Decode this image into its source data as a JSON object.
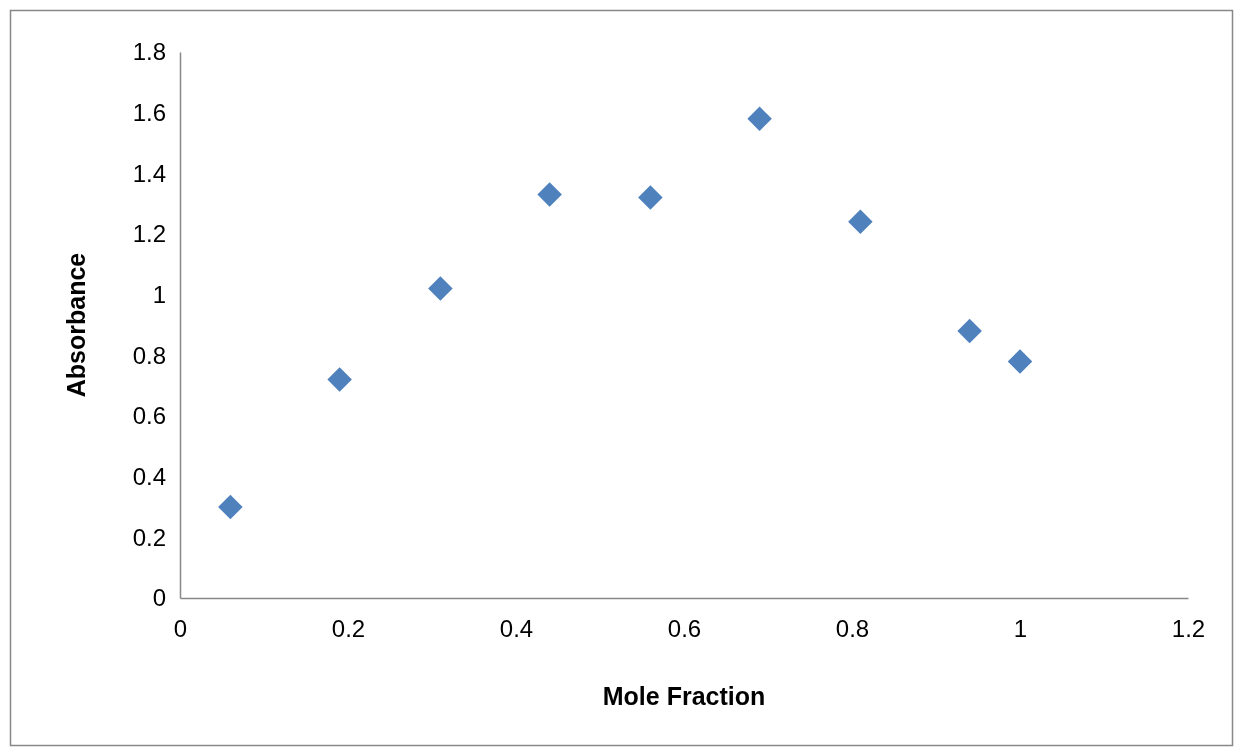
{
  "chart_data": {
    "type": "scatter",
    "xlabel": "Mole Fraction",
    "ylabel": "Absorbance",
    "x": [
      0.06,
      0.19,
      0.31,
      0.44,
      0.56,
      0.69,
      0.81,
      0.94,
      1.0
    ],
    "series": [
      {
        "color": "#4f81bd",
        "values": [
          0.3,
          0.72,
          1.02,
          1.33,
          1.32,
          1.58,
          1.24,
          0.88,
          0.78
        ]
      }
    ],
    "xlim": [
      0,
      1.2
    ],
    "xticks": [
      0,
      0.2,
      0.4,
      0.6,
      0.8,
      1,
      1.2
    ],
    "ylim": [
      0,
      1.8
    ],
    "yticks": [
      0,
      0.2,
      0.4,
      0.6,
      0.8,
      1,
      1.2,
      1.4,
      1.6,
      1.8
    ],
    "grid": false,
    "marker": "diamond"
  }
}
